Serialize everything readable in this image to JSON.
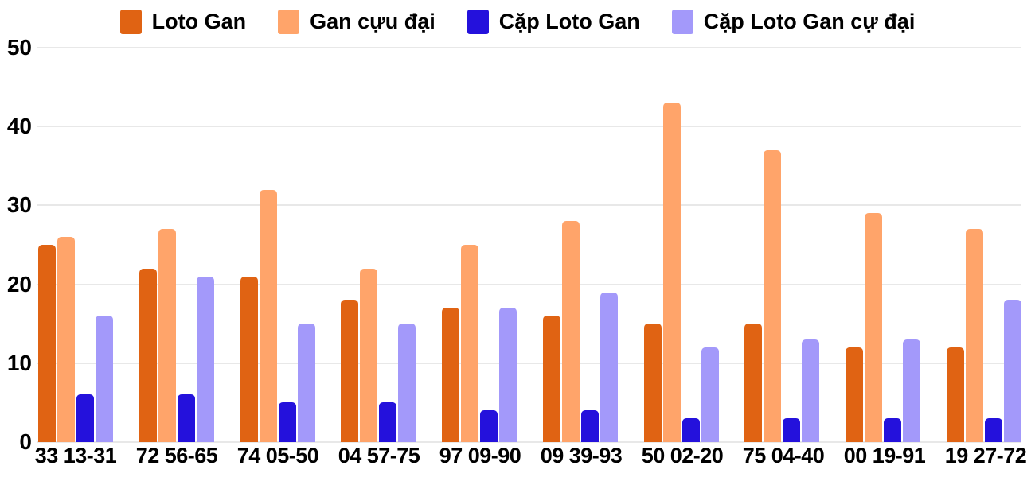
{
  "chart_data": {
    "type": "bar",
    "title": "",
    "xlabel": "",
    "ylabel": "",
    "categories": [
      "33 13-31",
      "72 56-65",
      "74 05-50",
      "04 57-75",
      "97 09-90",
      "09 39-93",
      "50 02-20",
      "75 04-40",
      "00 19-91",
      "19 27-72"
    ],
    "series": [
      {
        "name": "Loto Gan",
        "color": "#E06313",
        "values": [
          25,
          22,
          21,
          18,
          17,
          16,
          15,
          15,
          12,
          12
        ]
      },
      {
        "name": "Gan cựu đại",
        "color": "#FFA46A",
        "values": [
          26,
          27,
          32,
          22,
          25,
          28,
          43,
          37,
          29,
          27
        ]
      },
      {
        "name": "Cặp Loto Gan",
        "color": "#2411DC",
        "values": [
          6,
          6,
          5,
          5,
          4,
          4,
          3,
          3,
          3,
          3
        ]
      },
      {
        "name": "Cặp Loto Gan cự đại",
        "color": "#A399FA",
        "values": [
          16,
          21,
          15,
          15,
          17,
          19,
          12,
          13,
          13,
          18
        ]
      }
    ],
    "ylim": [
      0,
      50
    ],
    "yticks": [
      0,
      10,
      20,
      30,
      40,
      50
    ],
    "grid": true,
    "legend_position": "top",
    "gridline_color": "#E8E8E8",
    "text_color": "#000000",
    "background": "#FFFFFF"
  }
}
